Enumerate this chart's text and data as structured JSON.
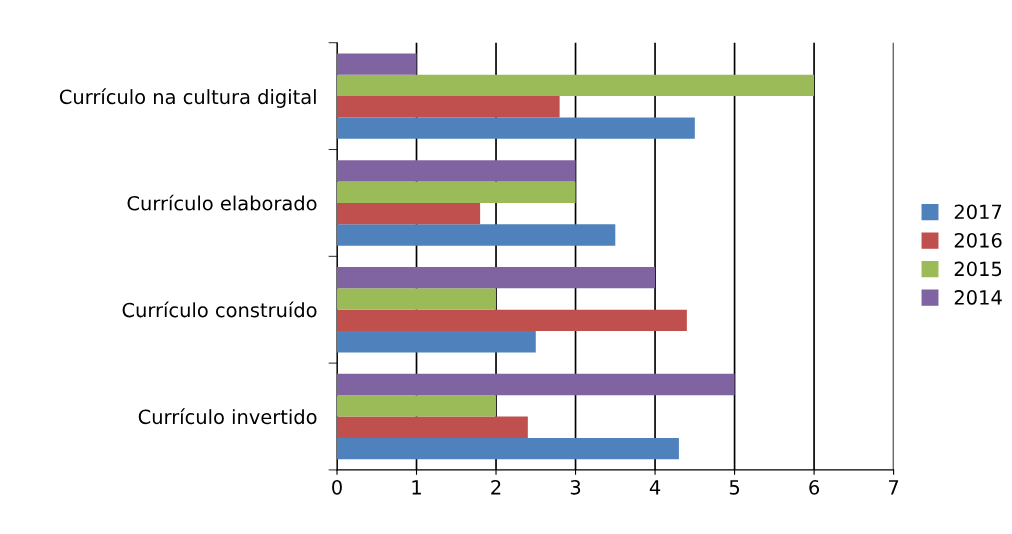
{
  "chart_data": {
    "type": "bar",
    "orientation": "horizontal",
    "categories": [
      "Currículo na cultura digital",
      "Currículo elaborado",
      "Currículo construído",
      "Currículo invertido"
    ],
    "series": [
      {
        "name": "2017",
        "color": "#4f81bd",
        "values": [
          4.5,
          3.5,
          2.5,
          4.3
        ]
      },
      {
        "name": "2016",
        "color": "#c0504d",
        "values": [
          2.8,
          1.8,
          4.4,
          2.4
        ]
      },
      {
        "name": "2015",
        "color": "#9bbb59",
        "values": [
          6,
          3,
          2,
          2
        ]
      },
      {
        "name": "2014",
        "color": "#8064a2",
        "values": [
          1,
          3,
          4,
          5
        ]
      }
    ],
    "xlim": [
      0,
      7
    ],
    "xticks": [
      0,
      1,
      2,
      3,
      4,
      5,
      6,
      7
    ],
    "grid": "x",
    "legend": "right"
  }
}
